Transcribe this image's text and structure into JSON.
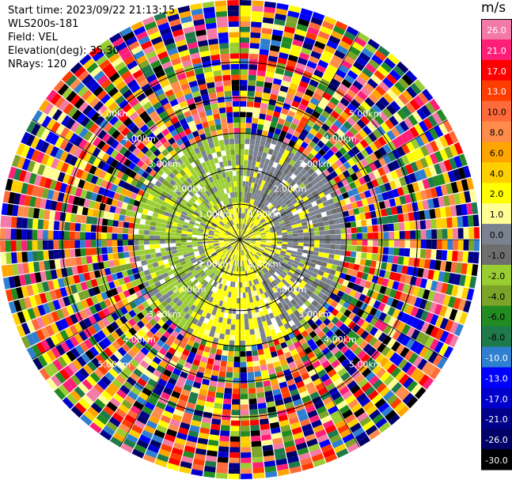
{
  "header": {
    "start_time": "Start time: 2023/09/22 21:13:15",
    "instrument": "WLS200s-181",
    "field": "Field: VEL",
    "elevation": "Elevation(deg): 35.30",
    "nrays": "NRays: 120"
  },
  "colorbar": {
    "unit_label": "m/s",
    "levels": [
      {
        "label": "26.0",
        "color": "#f37aa6"
      },
      {
        "label": "21.0",
        "color": "#ff1e78"
      },
      {
        "label": "17.0",
        "color": "#ff0000"
      },
      {
        "label": "13.0",
        "color": "#ff3c00"
      },
      {
        "label": "10.0",
        "color": "#ff6a3a"
      },
      {
        "label": "8.0",
        "color": "#ff8c4a"
      },
      {
        "label": "6.0",
        "color": "#ffa500"
      },
      {
        "label": "4.0",
        "color": "#ffd000"
      },
      {
        "label": "2.0",
        "color": "#ffff00"
      },
      {
        "label": "1.0",
        "color": "#ffff96"
      },
      {
        "label": "0.0",
        "color": "#7a8290"
      },
      {
        "label": "-1.0",
        "color": "#6e6e6e"
      },
      {
        "label": "-2.0",
        "color": "#9acd32"
      },
      {
        "label": "-4.0",
        "color": "#7ba428"
      },
      {
        "label": "-6.0",
        "color": "#228b22"
      },
      {
        "label": "-8.0",
        "color": "#1e7a4a"
      },
      {
        "label": "-10.0",
        "color": "#2f7fd0"
      },
      {
        "label": "-13.0",
        "color": "#0000ff"
      },
      {
        "label": "-17.0",
        "color": "#0000cd"
      },
      {
        "label": "-21.0",
        "color": "#00008b"
      },
      {
        "label": "-26.0",
        "color": "#000066"
      },
      {
        "label": "-30.0",
        "color": "#000000"
      }
    ]
  },
  "chart_data": {
    "type": "heatmap",
    "projection": "polar-ppi",
    "nrays": 120,
    "range_ring_labels": [
      "1.00km",
      "2.00km",
      "3.00km",
      "4.00km",
      "5.00km"
    ],
    "range_rings_km": [
      1,
      2,
      3,
      4,
      5
    ],
    "spoke_azimuths_deg": [
      0,
      30,
      60,
      90,
      120,
      150,
      180,
      210,
      240,
      270,
      300,
      330
    ],
    "max_range_km": 6.75,
    "regions": [
      {
        "range_km": [
          0,
          1.0
        ],
        "dominant": "2.0 to 4.0 (yellow), mixed 0.0"
      },
      {
        "range_km": [
          1.0,
          3.0
        ],
        "azimuth_sector_deg": [
          210,
          360
        ],
        "dominant": "-2.0 to -4.0 (olive green)"
      },
      {
        "range_km": [
          1.0,
          3.0
        ],
        "azimuth_sector_deg": [
          150,
          210
        ],
        "dominant": "2.0 to 4.0 (yellow)"
      },
      {
        "range_km": [
          1.0,
          3.0
        ],
        "dominant_elsewhere": "0.0 / -1.0 (grey)"
      },
      {
        "range_km": [
          3.0,
          6.75
        ],
        "dominant": "noise (random full-scale colors)"
      }
    ]
  }
}
